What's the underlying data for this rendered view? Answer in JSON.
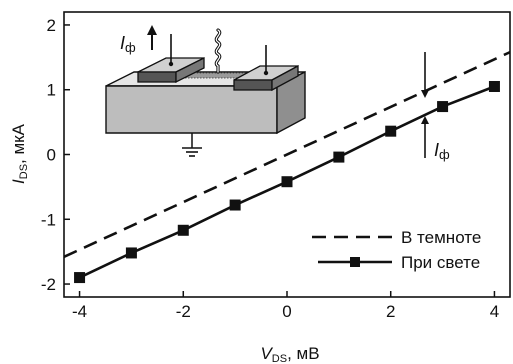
{
  "chart_data": {
    "type": "line",
    "xlabel": {
      "main": "V",
      "sub": "DS",
      "unit": ", мВ"
    },
    "ylabel": {
      "main": "I",
      "sub": "DS",
      "unit": ", мкА"
    },
    "xlim": [
      -4.3,
      4.3
    ],
    "ylim": [
      -2.2,
      2.2
    ],
    "xticks": [
      -4,
      -2,
      0,
      2,
      4
    ],
    "yticks": [
      -2,
      -1,
      0,
      1,
      2
    ],
    "xtick_labels": [
      "-4",
      "-2",
      "0",
      "2",
      "4"
    ],
    "ytick_labels": [
      "-2",
      "-1",
      "0",
      "1",
      "2"
    ],
    "grid": false,
    "legend_position": "bottom-right",
    "series": [
      {
        "name": "В темноте",
        "style": "dashed",
        "marker": "none",
        "color": "#111111",
        "x": [
          -4.3,
          4.3
        ],
        "y": [
          -1.58,
          1.58
        ]
      },
      {
        "name": "При свете",
        "style": "solid",
        "marker": "square",
        "color": "#111111",
        "x": [
          -4,
          -3,
          -2,
          -1,
          0,
          1,
          2,
          3,
          4
        ],
        "y": [
          -1.9,
          -1.52,
          -1.17,
          -0.78,
          -0.42,
          -0.04,
          0.36,
          0.74,
          1.05
        ]
      }
    ],
    "annotations": [
      {
        "text": "I",
        "sub": "ф",
        "at": "inset, upward arrow"
      },
      {
        "text": "I",
        "sub": "ф",
        "at": "gap between lines, x≈2.5"
      }
    ]
  }
}
